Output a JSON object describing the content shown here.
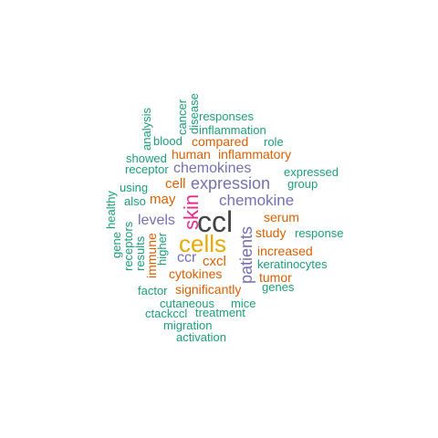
{
  "colors": {
    "teal": "#1b9e77",
    "orange": "#d95f02",
    "purple": "#7570b3",
    "magenta": "#e7298a",
    "gold": "#e6ab02",
    "gray": "#444444"
  },
  "words": [
    {
      "text": "ccl",
      "color": "gray"
    },
    {
      "text": "cells",
      "color": "gold"
    },
    {
      "text": "skin",
      "color": "magenta"
    },
    {
      "text": "patients",
      "color": "purple"
    },
    {
      "text": "expression",
      "color": "purple"
    },
    {
      "text": "chemokine",
      "color": "purple"
    },
    {
      "text": "chemokines",
      "color": "purple"
    },
    {
      "text": "levels",
      "color": "purple"
    },
    {
      "text": "ccr",
      "color": "purple"
    },
    {
      "text": "cxcl",
      "color": "orange"
    },
    {
      "text": "cytokines",
      "color": "orange"
    },
    {
      "text": "significantly",
      "color": "orange"
    },
    {
      "text": "cell",
      "color": "orange"
    },
    {
      "text": "may",
      "color": "orange"
    },
    {
      "text": "human",
      "color": "orange"
    },
    {
      "text": "inflammatory",
      "color": "orange"
    },
    {
      "text": "compared",
      "color": "orange"
    },
    {
      "text": "serum",
      "color": "orange"
    },
    {
      "text": "study",
      "color": "orange"
    },
    {
      "text": "increased",
      "color": "orange"
    },
    {
      "text": "tumor",
      "color": "orange"
    },
    {
      "text": "immune",
      "color": "orange"
    },
    {
      "text": "responses",
      "color": "teal"
    },
    {
      "text": "inflammation",
      "color": "teal"
    },
    {
      "text": "role",
      "color": "teal"
    },
    {
      "text": "blood",
      "color": "teal"
    },
    {
      "text": "showed",
      "color": "teal"
    },
    {
      "text": "receptor",
      "color": "teal"
    },
    {
      "text": "expressed",
      "color": "teal"
    },
    {
      "text": "group",
      "color": "teal"
    },
    {
      "text": "using",
      "color": "teal"
    },
    {
      "text": "also",
      "color": "teal"
    },
    {
      "text": "response",
      "color": "teal"
    },
    {
      "text": "keratinocytes",
      "color": "teal"
    },
    {
      "text": "genes",
      "color": "teal"
    },
    {
      "text": "factor",
      "color": "teal"
    },
    {
      "text": "cutaneous",
      "color": "teal"
    },
    {
      "text": "mice",
      "color": "teal"
    },
    {
      "text": "ctackccl",
      "color": "teal"
    },
    {
      "text": "treatment",
      "color": "teal"
    },
    {
      "text": "migration",
      "color": "teal"
    },
    {
      "text": "activation",
      "color": "teal"
    },
    {
      "text": "analysis",
      "color": "teal"
    },
    {
      "text": "cancer",
      "color": "teal"
    },
    {
      "text": "disease",
      "color": "teal"
    },
    {
      "text": "healthy",
      "color": "teal"
    },
    {
      "text": "gene",
      "color": "teal"
    },
    {
      "text": "receptors",
      "color": "teal"
    },
    {
      "text": "results",
      "color": "teal"
    },
    {
      "text": "higher",
      "color": "teal"
    }
  ]
}
